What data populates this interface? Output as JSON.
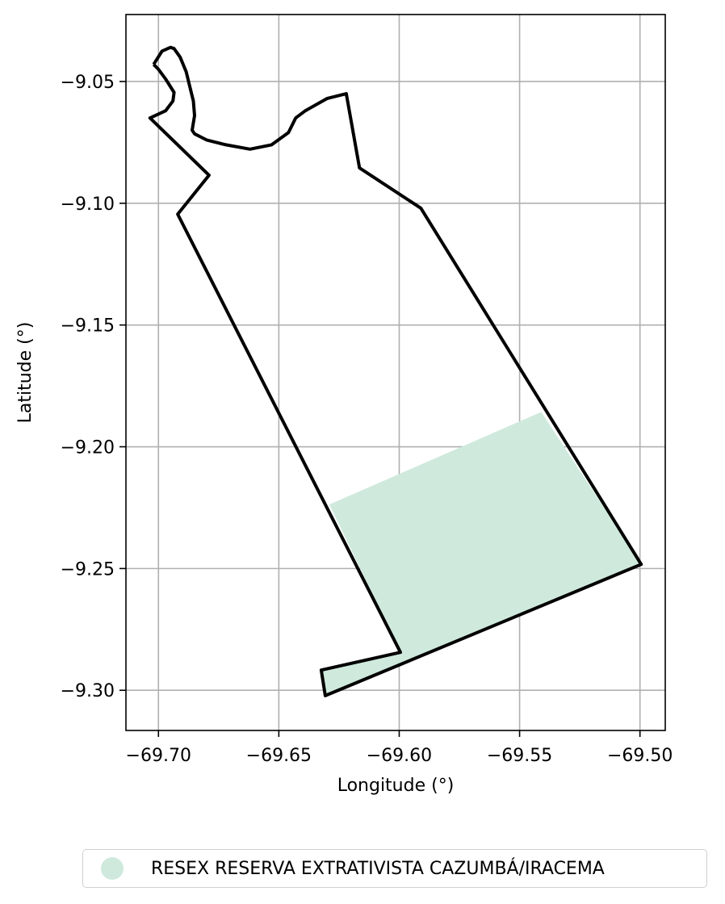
{
  "chart_data": {
    "type": "map",
    "xlabel": "Longitude (°)",
    "ylabel": "Latitude (°)",
    "xlim": [
      -69.7135,
      -69.4895
    ],
    "ylim": [
      -9.3165,
      -9.0225
    ],
    "xticks": [
      -69.7,
      -69.65,
      -69.6,
      -69.55,
      -69.5
    ],
    "yticks": [
      -9.05,
      -9.1,
      -9.15,
      -9.2,
      -9.25,
      -9.3
    ],
    "xtick_labels": [
      "−69.70",
      "−69.65",
      "−69.60",
      "−69.55",
      "−69.50"
    ],
    "ytick_labels": [
      "−9.05",
      "−9.10",
      "−9.15",
      "−9.20",
      "−9.25",
      "−9.30"
    ],
    "grid": true,
    "legend_position": "bottom-center",
    "fill_color": "#cfeadc",
    "outline_color": "#000000",
    "legend": [
      {
        "label": "RESEX RESERVA EXTRATIVISTA CAZUMBÁ/IRACEMA",
        "color": "#cfeadc"
      }
    ],
    "filled_area": [
      [
        -69.629,
        -9.2237
      ],
      [
        -69.541,
        -9.1857
      ],
      [
        -69.4995,
        -9.2483
      ],
      [
        -69.6307,
        -9.3022
      ],
      [
        -69.6324,
        -9.2917
      ],
      [
        -69.5995,
        -9.2844
      ],
      [
        -69.629,
        -9.2237
      ]
    ],
    "boundary": [
      [
        -69.702,
        -9.043
      ],
      [
        -69.6985,
        -9.0375
      ],
      [
        -69.695,
        -9.036
      ],
      [
        -69.6935,
        -9.0365
      ],
      [
        -69.691,
        -9.04
      ],
      [
        -69.6885,
        -9.046
      ],
      [
        -69.6865,
        -9.054
      ],
      [
        -69.6855,
        -9.058
      ],
      [
        -69.685,
        -9.064
      ],
      [
        -69.686,
        -9.07
      ],
      [
        -69.685,
        -9.0715
      ],
      [
        -69.68,
        -9.074
      ],
      [
        -69.672,
        -9.076
      ],
      [
        -69.662,
        -9.0778
      ],
      [
        -69.653,
        -9.076
      ],
      [
        -69.646,
        -9.071
      ],
      [
        -69.643,
        -9.065
      ],
      [
        -69.639,
        -9.062
      ],
      [
        -69.63,
        -9.057
      ],
      [
        -69.622,
        -9.055
      ],
      [
        -69.6165,
        -9.0855
      ],
      [
        -69.591,
        -9.102
      ],
      [
        -69.4995,
        -9.2483
      ],
      [
        -69.6307,
        -9.3022
      ],
      [
        -69.6324,
        -9.2917
      ],
      [
        -69.5995,
        -9.2844
      ],
      [
        -69.692,
        -9.1045
      ],
      [
        -69.679,
        -9.0885
      ],
      [
        -69.7035,
        -9.065
      ],
      [
        -69.697,
        -9.062
      ],
      [
        -69.694,
        -9.058
      ],
      [
        -69.6935,
        -9.0545
      ],
      [
        -69.697,
        -9.049
      ],
      [
        -69.7,
        -9.045
      ],
      [
        -69.702,
        -9.043
      ]
    ]
  }
}
